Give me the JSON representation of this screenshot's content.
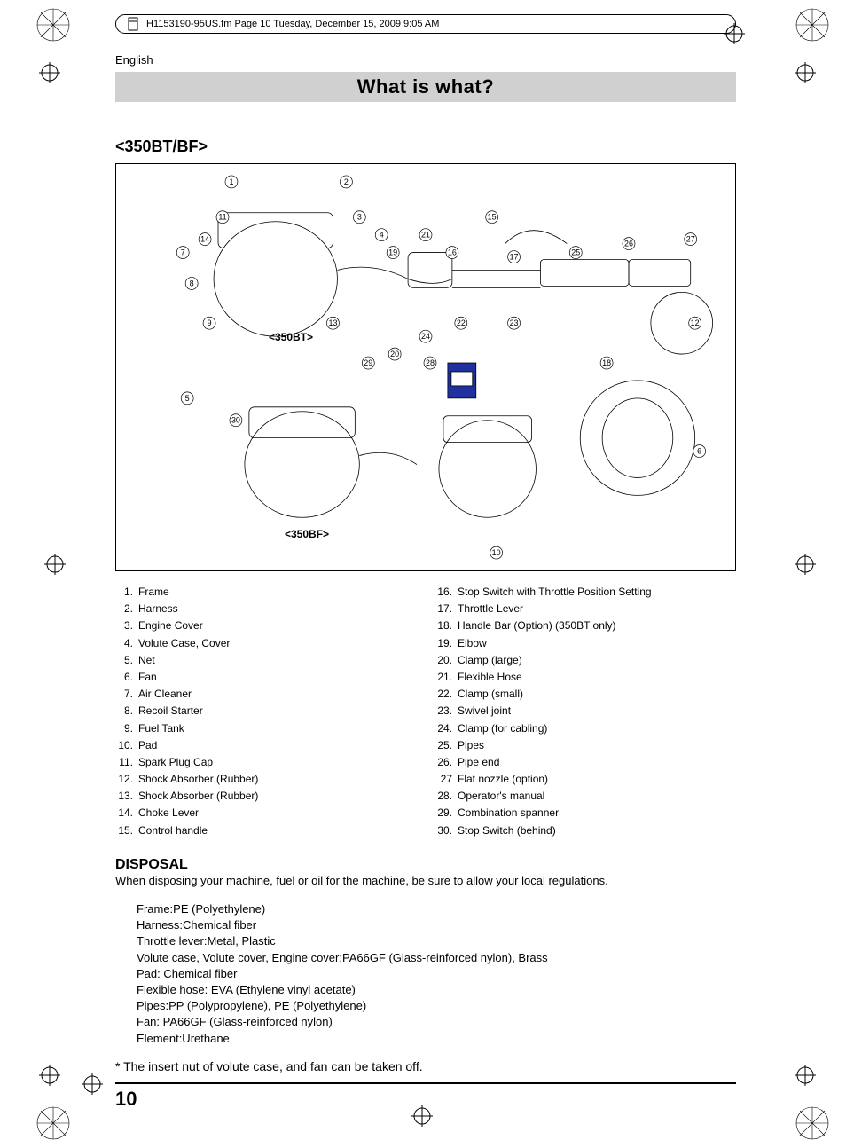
{
  "header_path": "H1153190-95US.fm  Page 10  Tuesday, December 15, 2009  9:05 AM",
  "language": "English",
  "title": "What is what?",
  "model_heading": "<350BT/BF>",
  "diagram": {
    "label_top": "<350BT>",
    "label_bottom": "<350BF>",
    "callouts": [
      "1",
      "2",
      "3",
      "4",
      "5",
      "6",
      "7",
      "8",
      "9",
      "10",
      "11",
      "12",
      "13",
      "14",
      "15",
      "16",
      "17",
      "18",
      "19",
      "20",
      "21",
      "22",
      "23",
      "24",
      "25",
      "26",
      "27",
      "28",
      "29",
      "30"
    ]
  },
  "parts_left": [
    {
      "n": "1.",
      "t": "Frame"
    },
    {
      "n": "2.",
      "t": "Harness"
    },
    {
      "n": "3.",
      "t": "Engine Cover"
    },
    {
      "n": "4.",
      "t": "Volute Case, Cover"
    },
    {
      "n": "5.",
      "t": "Net"
    },
    {
      "n": "6.",
      "t": "Fan"
    },
    {
      "n": "7.",
      "t": "Air Cleaner"
    },
    {
      "n": "8.",
      "t": "Recoil Starter"
    },
    {
      "n": "9.",
      "t": "Fuel Tank"
    },
    {
      "n": "10.",
      "t": "Pad"
    },
    {
      "n": "11.",
      "t": "Spark Plug Cap"
    },
    {
      "n": "12.",
      "t": "Shock Absorber (Rubber)"
    },
    {
      "n": "13.",
      "t": "Shock Absorber (Rubber)"
    },
    {
      "n": "14.",
      "t": "Choke Lever"
    },
    {
      "n": "15.",
      "t": "Control handle"
    }
  ],
  "parts_right": [
    {
      "n": "16.",
      "t": "Stop Switch with Throttle Position Setting"
    },
    {
      "n": "17.",
      "t": "Throttle Lever"
    },
    {
      "n": "18.",
      "t": "Handle Bar (Option) (350BT only)"
    },
    {
      "n": "19.",
      "t": "Elbow"
    },
    {
      "n": "20.",
      "t": "Clamp (large)"
    },
    {
      "n": "21.",
      "t": "Flexible Hose"
    },
    {
      "n": "22.",
      "t": "Clamp (small)"
    },
    {
      "n": "23.",
      "t": "Swivel joint"
    },
    {
      "n": "24.",
      "t": "Clamp (for cabling)"
    },
    {
      "n": "25.",
      "t": "Pipes"
    },
    {
      "n": "26.",
      "t": "Pipe end"
    },
    {
      "n": "27",
      "t": "Flat nozzle (option)"
    },
    {
      "n": "28.",
      "t": "Operator's manual"
    },
    {
      "n": "29.",
      "t": "Combination spanner"
    },
    {
      "n": "30.",
      "t": "Stop Switch (behind)"
    }
  ],
  "disposal": {
    "heading": "DISPOSAL",
    "intro": "When disposing your machine, fuel or oil for the machine, be sure to allow your local regulations.",
    "materials": [
      "Frame:PE (Polyethylene)",
      "Harness:Chemical fiber",
      "Throttle lever:Metal, Plastic",
      "Volute case, Volute cover, Engine cover:PA66GF (Glass-reinforced nylon), Brass",
      "Pad:  Chemical fiber",
      "Flexible hose: EVA (Ethylene vinyl acetate)",
      "Pipes:PP (Polypropylene), PE (Polyethylene)",
      "Fan:  PA66GF (Glass-reinforced nylon)",
      "Element:Urethane"
    ],
    "footnote": "* The insert nut of volute case, and fan can be taken off."
  },
  "page_number": "10"
}
